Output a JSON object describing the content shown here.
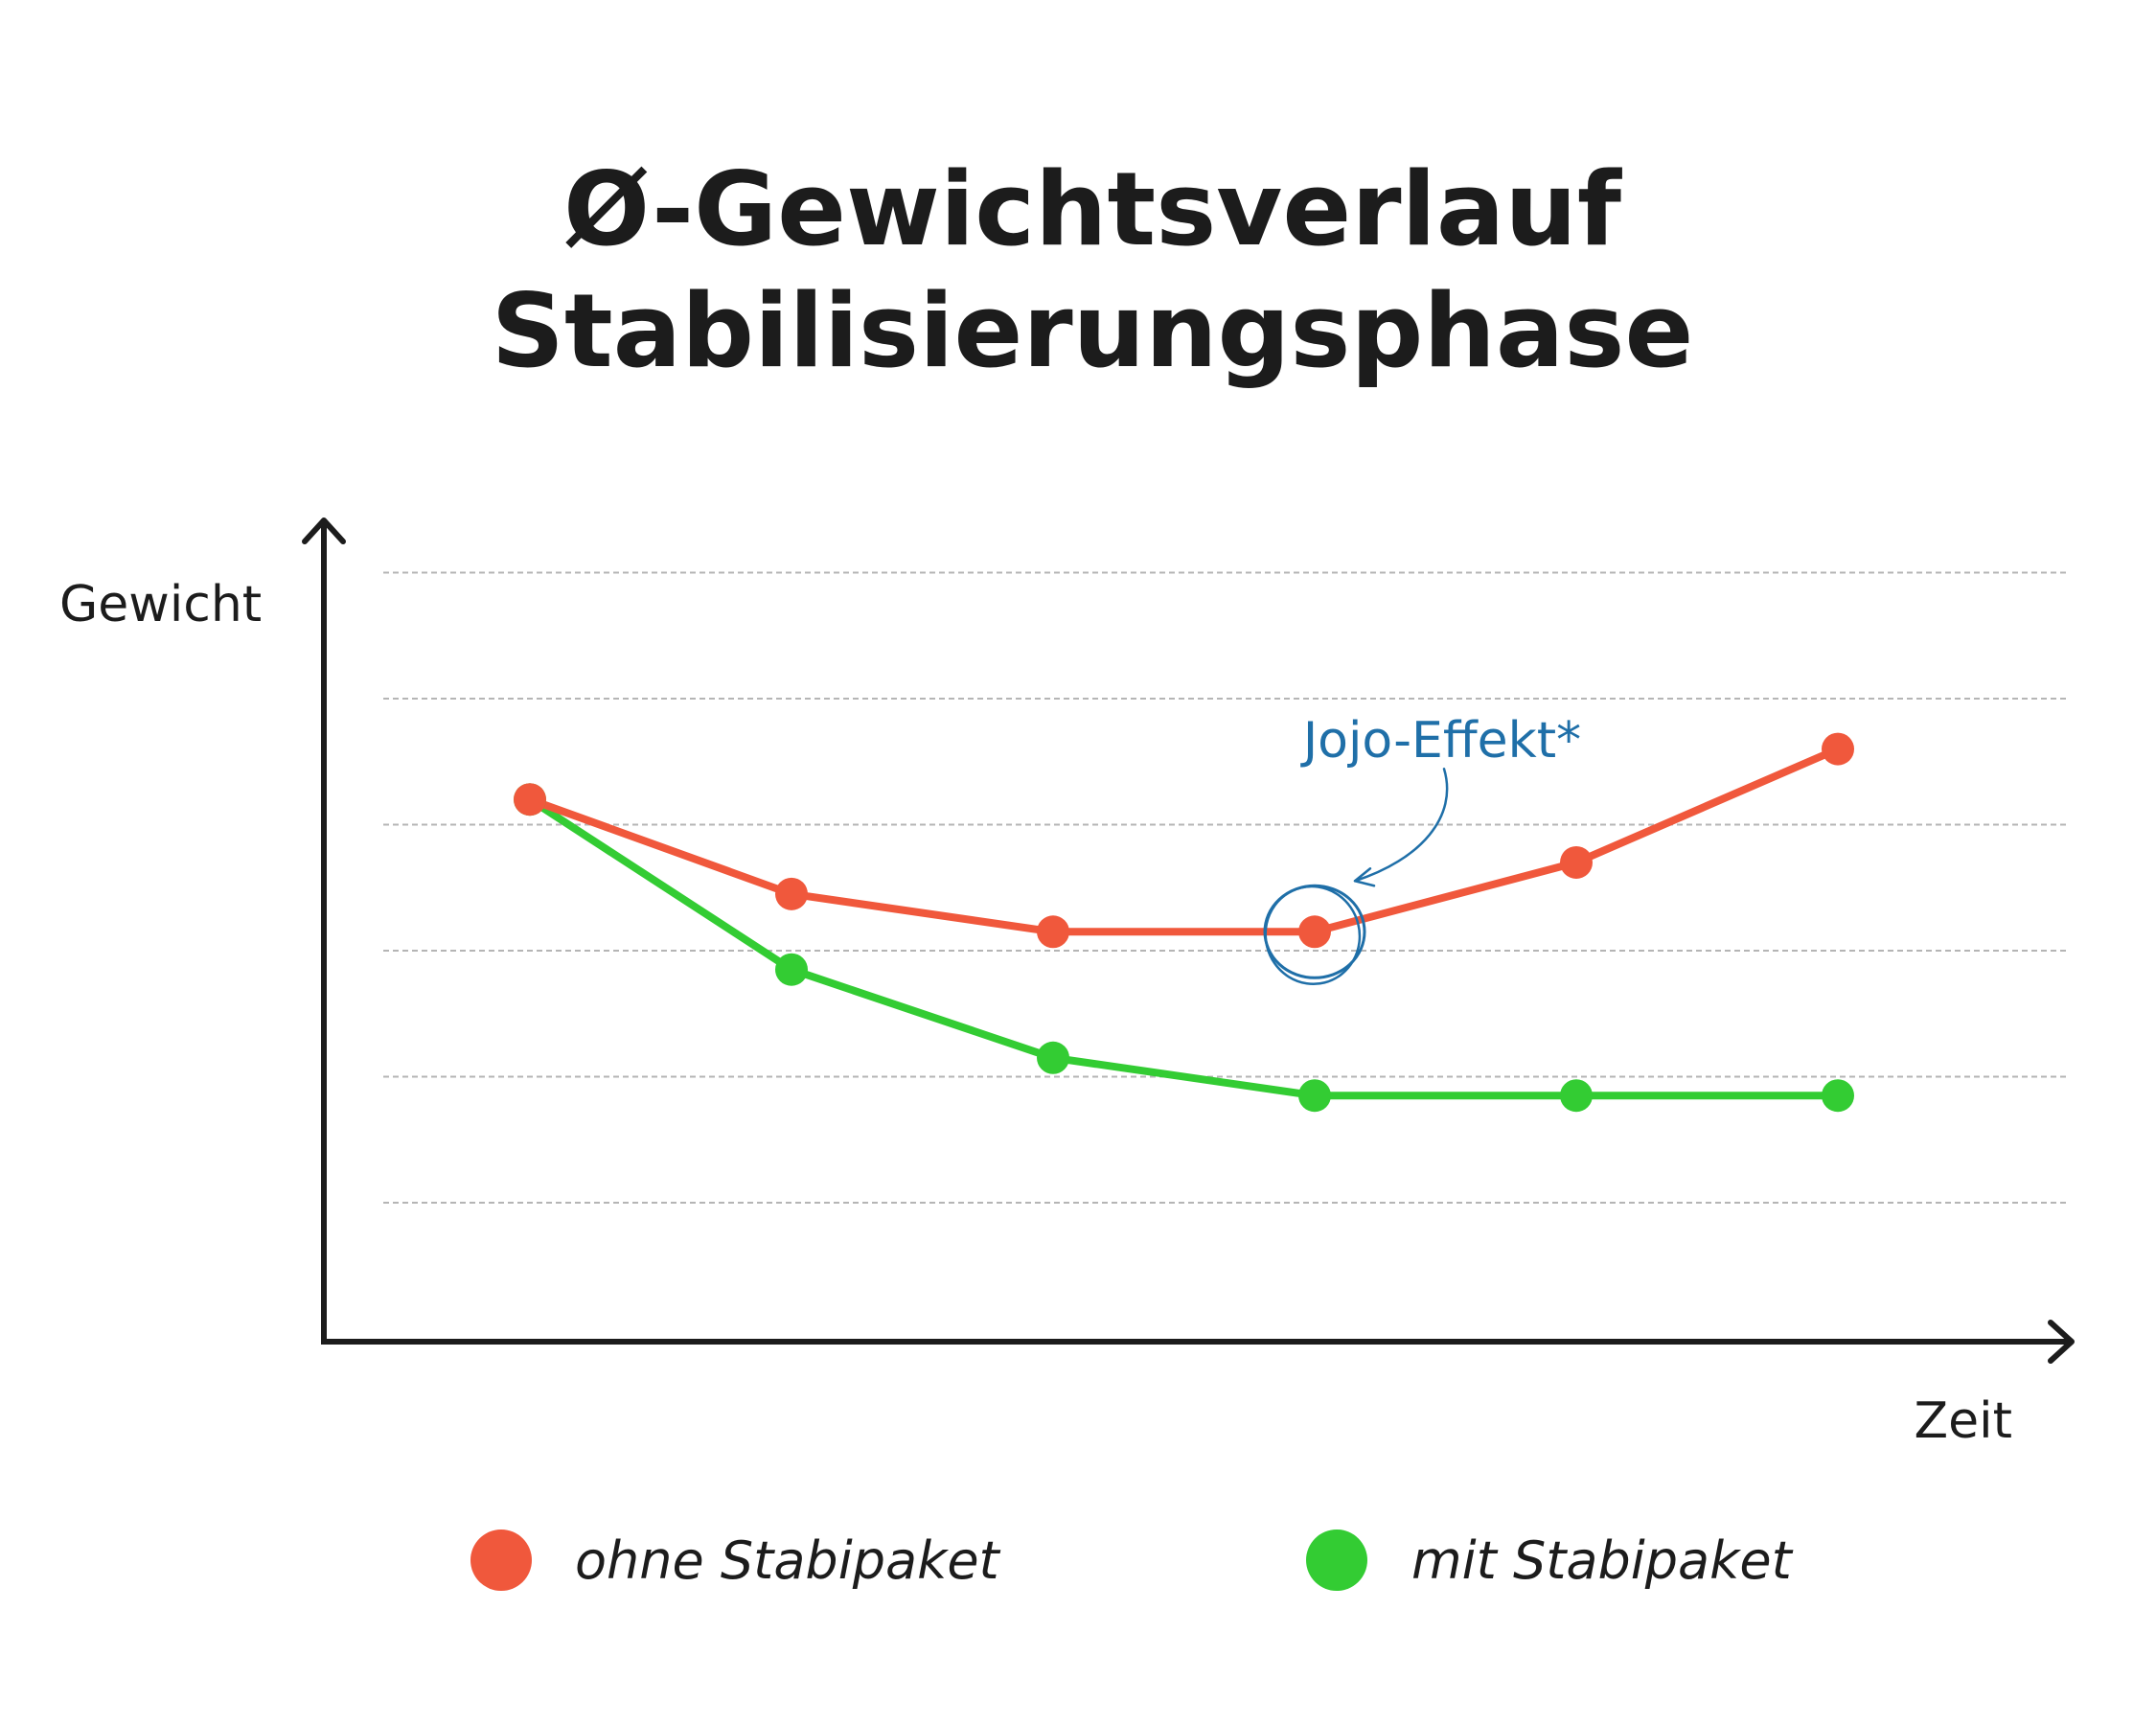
{
  "chart_data": {
    "type": "line",
    "title": [
      "Ø-Gewichtsverlauf",
      "Stabilisierungsphase"
    ],
    "xlabel": "Zeit",
    "ylabel": "Gewicht",
    "x": [
      1,
      2,
      3,
      4,
      5,
      6
    ],
    "ylim": [
      0,
      6
    ],
    "grid": true,
    "gridlines": [
      1,
      2,
      3,
      4,
      5,
      6
    ],
    "series": [
      {
        "name": "ohne Stabipaket",
        "color": "#f0583c",
        "values": [
          4.2,
          3.45,
          3.15,
          3.15,
          3.7,
          4.6
        ]
      },
      {
        "name": "mit Stabipaket",
        "color": "#33cc33",
        "values": [
          4.2,
          2.85,
          2.15,
          1.85,
          1.85,
          1.85
        ]
      }
    ],
    "annotation": {
      "text": "Jojo-Effekt*",
      "series": 0,
      "point_index": 3,
      "color": "#1f6fa8"
    },
    "legend": "bottom"
  }
}
